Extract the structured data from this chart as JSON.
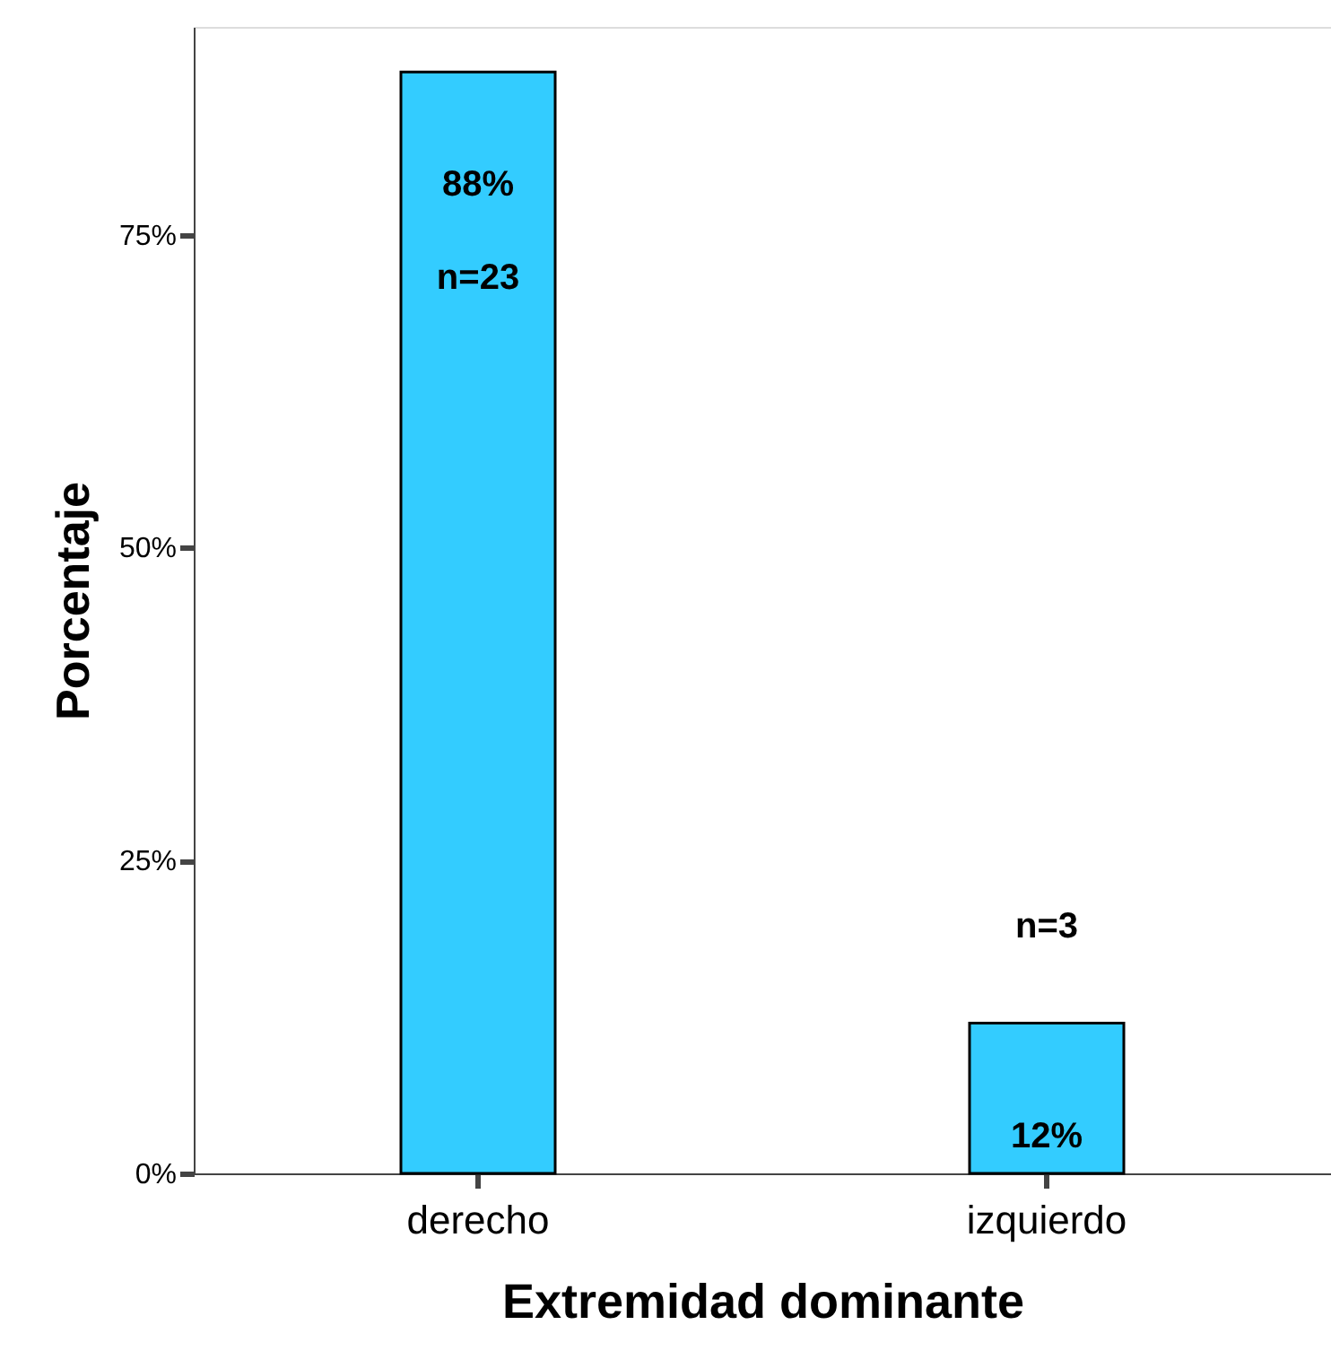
{
  "chart_data": {
    "type": "bar",
    "categories": [
      "derecho",
      "izquierdo"
    ],
    "values": [
      88,
      12
    ],
    "color": "#33ccff",
    "value_labels": [
      "88%",
      "12%"
    ],
    "annotations": [
      "n=23",
      "n=3"
    ],
    "xlabel": "Extremidad  dominante",
    "ylabel": "Porcentaje",
    "ylim": [
      0,
      91.6
    ],
    "yticks": [
      {
        "value": 0,
        "label": "0%"
      },
      {
        "value": 25,
        "label": "25%"
      },
      {
        "value": 50,
        "label": "50%"
      },
      {
        "value": 75,
        "label": "75%"
      }
    ],
    "grid": false
  }
}
